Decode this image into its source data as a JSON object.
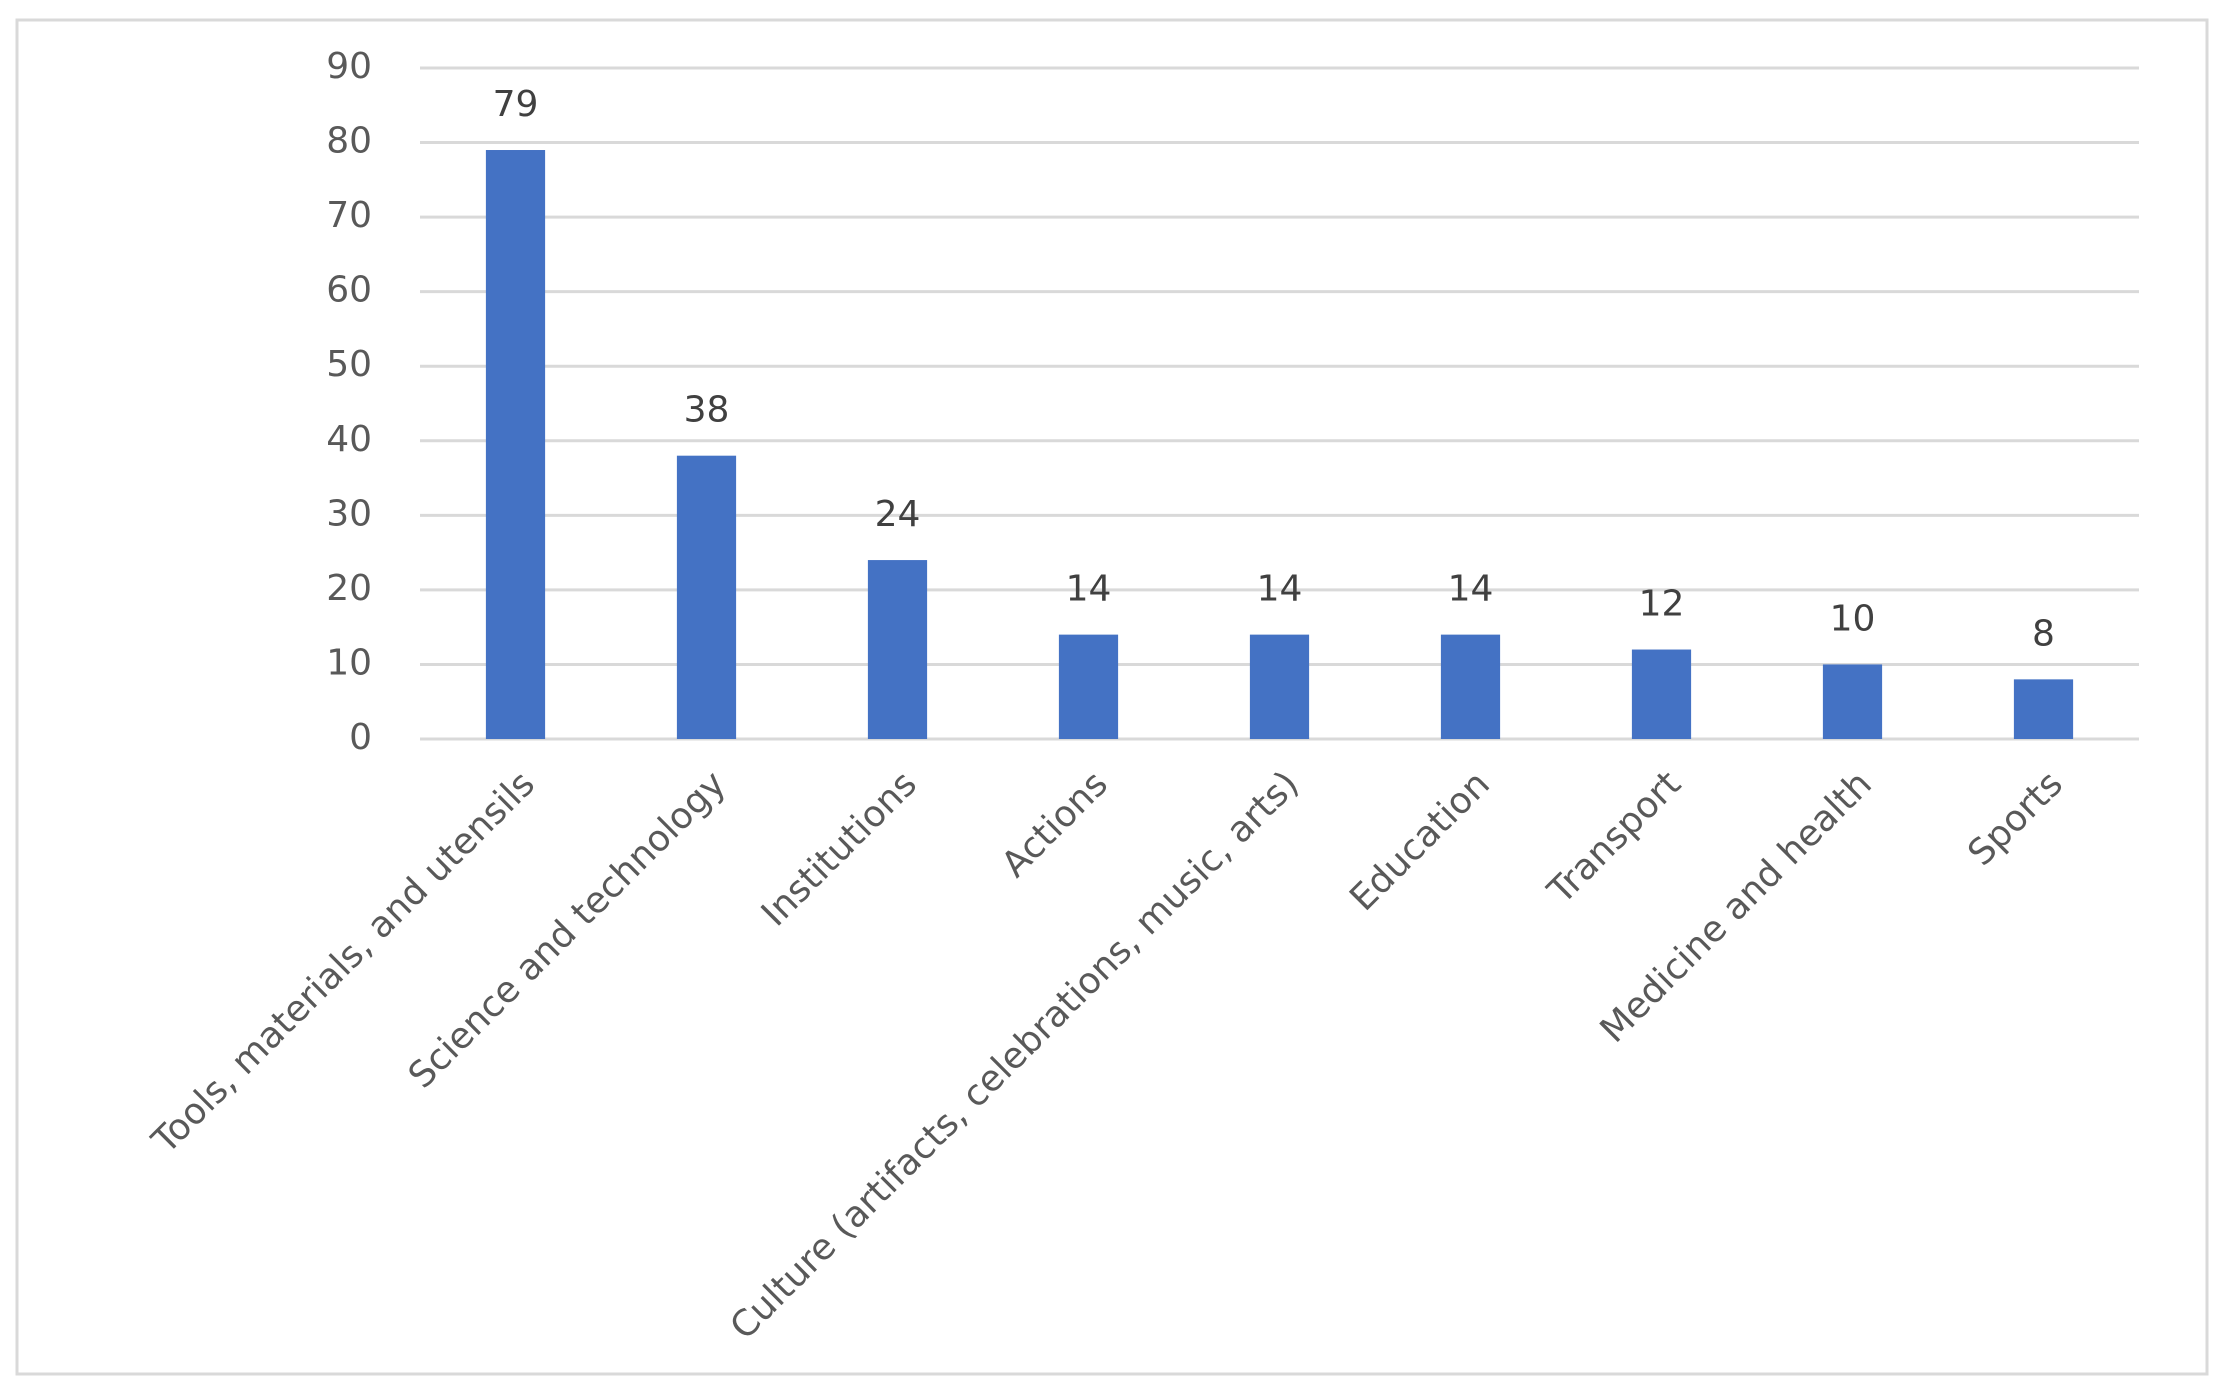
{
  "chart_data": {
    "type": "bar",
    "categories": [
      "Tools, materials, and utensils",
      "Science and technology",
      "Institutions",
      "Actions",
      "Culture (artifacts, celebrations, music, arts)",
      "Education",
      "Transport",
      "Medicine and health",
      "Sports"
    ],
    "values": [
      79,
      38,
      24,
      14,
      14,
      14,
      12,
      10,
      8
    ],
    "color": "#4472c4",
    "ylim": [
      0,
      90
    ],
    "yticks": [
      0,
      10,
      20,
      30,
      40,
      50,
      60,
      70,
      80,
      90
    ],
    "grid": true
  }
}
